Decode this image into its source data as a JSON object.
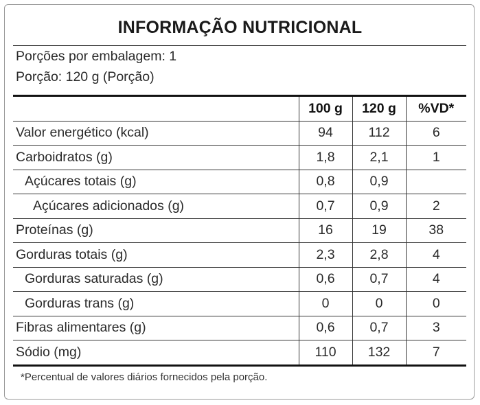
{
  "title": "INFORMAÇÃO NUTRICIONAL",
  "servings_per_package": "Porções por embalagem: 1",
  "serving_size": "Porção: 120 g (Porção)",
  "columns": [
    "",
    "100 g",
    "120 g",
    "%VD*"
  ],
  "rows": [
    {
      "name": "Valor energético (kcal)",
      "v100": "94",
      "v120": "112",
      "vd": "6"
    },
    {
      "name": "Carboidratos (g)",
      "v100": "1,8",
      "v120": "2,1",
      "vd": "1"
    },
    {
      "name": "Açúcares totais (g)",
      "v100": "0,8",
      "v120": "0,9",
      "vd": ""
    },
    {
      "name": "Açúcares adicionados (g)",
      "v100": "0,7",
      "v120": "0,9",
      "vd": "2"
    },
    {
      "name": "Proteínas (g)",
      "v100": "16",
      "v120": "19",
      "vd": "38"
    },
    {
      "name": "Gorduras totais (g)",
      "v100": "2,3",
      "v120": "2,8",
      "vd": "4"
    },
    {
      "name": "Gorduras saturadas (g)",
      "v100": "0,6",
      "v120": "0,7",
      "vd": "4"
    },
    {
      "name": "Gorduras trans (g)",
      "v100": "0",
      "v120": "0",
      "vd": "0"
    },
    {
      "name": "Fibras alimentares (g)",
      "v100": "0,6",
      "v120": "0,7",
      "vd": "3"
    },
    {
      "name": "Sódio (mg)",
      "v100": "110",
      "v120": "132",
      "vd": "7"
    }
  ],
  "footnote": "*Percentual de valores diários fornecidos pela porção."
}
